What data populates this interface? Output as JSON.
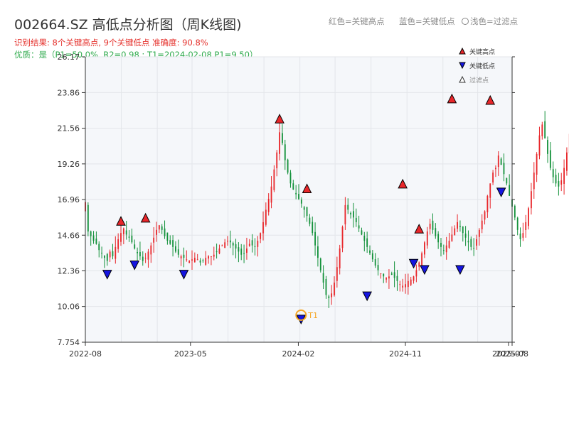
{
  "header": {
    "title": "002664.SZ 高低点分析图（周K线图)",
    "summary": "识别结果: 8个关键高点, 9个关键低点   准确度: 90.8%",
    "quality": "优质：是（P1=50.0%, R2=0.98 ; T1=2024-02-08 P1=9.50）",
    "hint_red": "红色=关键高点",
    "hint_blue": "蓝色=关键低点",
    "hint_light": "浅色=过滤点"
  },
  "colors": {
    "up": "#e8262a",
    "down": "#13913a",
    "high_marker": "#e8262a",
    "low_marker": "#1515e0",
    "t1_circle": "#f5a623",
    "plot_bg": "#f5f7fa"
  },
  "chart_data": {
    "type": "candlestick",
    "title": "002664.SZ 高低点分析图（周K线图)",
    "x_ticks": [
      "2022-08",
      "2023-05",
      "2024-02",
      "2024-11",
      "2025-07",
      "2025-08"
    ],
    "y_ticks": [
      "7.754",
      "10.06",
      "12.36",
      "14.66",
      "16.96",
      "19.26",
      "21.56",
      "23.86",
      "26.17"
    ],
    "ylim": [
      7.754,
      26.17
    ],
    "x_range": [
      "2022-08-05",
      "2025-08-01"
    ],
    "grid": true,
    "legend": {
      "position": "top-right",
      "entries": [
        {
          "label": "关键高点",
          "marker": "triangle-up",
          "color": "#e8262a"
        },
        {
          "label": "关键低点",
          "marker": "triangle-down",
          "color": "#1515e0"
        },
        {
          "label": "过滤点",
          "marker": "triangle-up-outline",
          "color": "#888888"
        }
      ]
    },
    "weekly_close": [
      16.8,
      14.9,
      14.6,
      14.3,
      14.1,
      13.7,
      13.5,
      13.2,
      13.0,
      13.6,
      13.3,
      13.9,
      14.4,
      14.8,
      15.1,
      14.7,
      14.5,
      14.2,
      13.8,
      13.5,
      13.3,
      13.0,
      13.2,
      13.6,
      14.0,
      14.5,
      15.0,
      15.3,
      15.0,
      14.6,
      14.3,
      14.1,
      13.9,
      13.6,
      13.4,
      13.3,
      13.2,
      13.1,
      13.0,
      13.1,
      13.2,
      13.1,
      12.9,
      13.0,
      13.2,
      13.3,
      13.3,
      13.4,
      13.6,
      13.8,
      14.0,
      14.2,
      14.3,
      14.2,
      14.0,
      13.8,
      13.6,
      13.4,
      13.5,
      13.8,
      14.1,
      14.0,
      13.9,
      14.3,
      14.8,
      15.5,
      16.3,
      17.0,
      17.8,
      18.9,
      20.0,
      21.3,
      20.6,
      19.5,
      18.7,
      18.0,
      17.6,
      17.3,
      17.0,
      16.7,
      16.3,
      15.9,
      15.4,
      14.8,
      14.0,
      13.2,
      12.4,
      11.6,
      10.8,
      10.6,
      10.9,
      11.6,
      12.6,
      13.8,
      15.2,
      16.6,
      16.3,
      16.0,
      15.8,
      15.5,
      15.1,
      14.7,
      14.3,
      13.9,
      13.5,
      13.1,
      12.7,
      12.4,
      12.2,
      12.0,
      11.9,
      12.0,
      12.1,
      11.9,
      11.7,
      11.5,
      11.4,
      11.5,
      11.7,
      11.8,
      12.0,
      12.4,
      12.9,
      13.5,
      14.2,
      14.9,
      15.4,
      15.0,
      14.6,
      14.2,
      13.9,
      13.7,
      14.0,
      14.3,
      14.7,
      15.1,
      15.5,
      15.2,
      14.8,
      14.5,
      14.2,
      13.9,
      13.8,
      14.4,
      15.0,
      15.6,
      16.2,
      17.2,
      18.0,
      18.7,
      19.0,
      19.8,
      19.2,
      18.6,
      18.0,
      17.2,
      16.5,
      15.8,
      15.0,
      14.4,
      14.8,
      15.5,
      16.4,
      17.5,
      18.7,
      19.9,
      21.1,
      21.8,
      20.9,
      19.9,
      19.0,
      18.4,
      18.0,
      17.8,
      18.2,
      19.0,
      20.0,
      21.2,
      22.5,
      23.6,
      24.2
    ],
    "key_highs": [
      {
        "date": "2022-11-04",
        "value": 15.3
      },
      {
        "date": "2023-01-06",
        "value": 15.5
      },
      {
        "date": "2023-12-15",
        "value": 21.9
      },
      {
        "date": "2024-02-23",
        "value": 17.4
      },
      {
        "date": "2024-10-25",
        "value": 17.7
      },
      {
        "date": "2024-12-06",
        "value": 14.8
      },
      {
        "date": "2025-02-28",
        "value": 23.2
      },
      {
        "date": "2025-06-06",
        "value": 23.1
      }
    ],
    "key_lows": [
      {
        "date": "2022-09-30",
        "value": 12.4
      },
      {
        "date": "2022-12-09",
        "value": 13.0
      },
      {
        "date": "2023-04-14",
        "value": 12.4
      },
      {
        "date": "2024-02-08",
        "value": 9.5
      },
      {
        "date": "2024-07-26",
        "value": 11.0
      },
      {
        "date": "2024-11-22",
        "value": 13.1
      },
      {
        "date": "2024-12-20",
        "value": 12.7
      },
      {
        "date": "2025-03-21",
        "value": 12.7
      },
      {
        "date": "2025-07-04",
        "value": 17.7
      }
    ],
    "t1": {
      "label": "T1",
      "date": "2024-02-08",
      "value": 9.5
    }
  }
}
